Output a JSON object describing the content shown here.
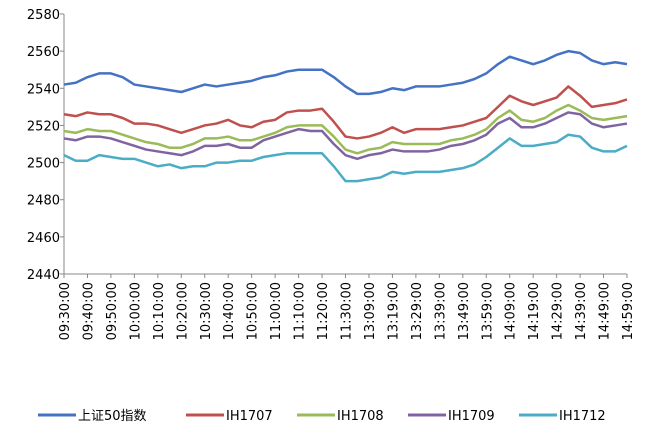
{
  "chart_data": {
    "type": "line",
    "categories": [
      "09:30:00",
      null,
      "09:40:00",
      null,
      "09:50:00",
      null,
      "10:00:00",
      null,
      "10:10:00",
      null,
      "10:20:00",
      null,
      "10:30:00",
      null,
      "10:40:00",
      null,
      "10:50:00",
      null,
      "11:00:00",
      null,
      "11:10:00",
      null,
      "11:20:00",
      null,
      "11:30:00",
      null,
      "13:09:00",
      null,
      "13:19:00",
      null,
      "13:29:00",
      null,
      "13:39:00",
      null,
      "13:49:00",
      null,
      "13:59:00",
      null,
      "14:09:00",
      null,
      "14:19:00",
      null,
      "14:29:00",
      null,
      "14:39:00",
      null,
      "14:49:00",
      null,
      "14:59:00"
    ],
    "ylim": [
      2440,
      2580
    ],
    "yticks": [
      2440,
      2460,
      2480,
      2500,
      2520,
      2540,
      2560,
      2580
    ],
    "grid": false,
    "legend": "bottom",
    "series": [
      {
        "name": "上证50指数",
        "color": "#4472c4",
        "values": [
          2542,
          2543,
          2546,
          2548,
          2548,
          2546,
          2542,
          2541,
          2540,
          2539,
          2538,
          2540,
          2542,
          2541,
          2542,
          2543,
          2544,
          2546,
          2547,
          2549,
          2550,
          2550,
          2550,
          2546,
          2541,
          2537,
          2537,
          2538,
          2540,
          2539,
          2541,
          2541,
          2541,
          2542,
          2543,
          2545,
          2548,
          2553,
          2557,
          2555,
          2553,
          2555,
          2558,
          2560,
          2559,
          2555,
          2553,
          2554,
          2553
        ]
      },
      {
        "name": "IH1707",
        "color": "#c0504d",
        "values": [
          2526,
          2525,
          2527,
          2526,
          2526,
          2524,
          2521,
          2521,
          2520,
          2518,
          2516,
          2518,
          2520,
          2521,
          2523,
          2520,
          2519,
          2522,
          2523,
          2527,
          2528,
          2528,
          2529,
          2522,
          2514,
          2513,
          2514,
          2516,
          2519,
          2516,
          2518,
          2518,
          2518,
          2519,
          2520,
          2522,
          2524,
          2530,
          2536,
          2533,
          2531,
          2533,
          2535,
          2541,
          2536,
          2530,
          2531,
          2532,
          2534
        ]
      },
      {
        "name": "IH1708",
        "color": "#9bbb59",
        "values": [
          2517,
          2516,
          2518,
          2517,
          2517,
          2515,
          2513,
          2511,
          2510,
          2508,
          2508,
          2510,
          2513,
          2513,
          2514,
          2512,
          2512,
          2514,
          2516,
          2519,
          2520,
          2520,
          2520,
          2514,
          2507,
          2505,
          2507,
          2508,
          2511,
          2510,
          2510,
          2510,
          2510,
          2512,
          2513,
          2515,
          2518,
          2524,
          2528,
          2523,
          2522,
          2524,
          2528,
          2531,
          2528,
          2524,
          2523,
          2524,
          2525
        ]
      },
      {
        "name": "IH1709",
        "color": "#8064a2",
        "values": [
          2513,
          2512,
          2514,
          2514,
          2513,
          2511,
          2509,
          2507,
          2506,
          2505,
          2504,
          2506,
          2509,
          2509,
          2510,
          2508,
          2508,
          2512,
          2514,
          2516,
          2518,
          2517,
          2517,
          2510,
          2504,
          2502,
          2504,
          2505,
          2507,
          2506,
          2506,
          2506,
          2507,
          2509,
          2510,
          2512,
          2515,
          2521,
          2524,
          2519,
          2519,
          2521,
          2524,
          2527,
          2526,
          2521,
          2519,
          2520,
          2521
        ]
      },
      {
        "name": "IH1712",
        "color": "#4bacc6",
        "values": [
          2504,
          2501,
          2501,
          2504,
          2503,
          2502,
          2502,
          2500,
          2498,
          2499,
          2497,
          2498,
          2498,
          2500,
          2500,
          2501,
          2501,
          2503,
          2504,
          2505,
          2505,
          2505,
          2505,
          2498,
          2490,
          2490,
          2491,
          2492,
          2495,
          2494,
          2495,
          2495,
          2495,
          2496,
          2497,
          2499,
          2503,
          2508,
          2513,
          2509,
          2509,
          2510,
          2511,
          2515,
          2514,
          2508,
          2506,
          2506,
          2509
        ]
      }
    ]
  }
}
